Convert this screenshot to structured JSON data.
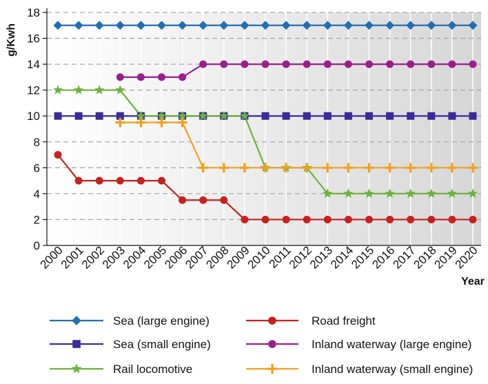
{
  "chart_data": {
    "type": "line",
    "ylabel": "g/Kwh",
    "xlabel": "Year",
    "ylim": [
      0,
      18
    ],
    "yticks": [
      0,
      2,
      4,
      6,
      8,
      10,
      12,
      14,
      16,
      18
    ],
    "categories": [
      "2000",
      "2001",
      "2002",
      "2003",
      "2004",
      "2005",
      "2006",
      "2007",
      "2008",
      "2009",
      "2010",
      "2011",
      "2012",
      "2013",
      "2014",
      "2015",
      "2016",
      "2017",
      "2018",
      "2019",
      "2020"
    ],
    "grid": true,
    "legend_position": "bottom",
    "series": [
      {
        "name": "Sea (large engine)",
        "color": "#1f6fb2",
        "marker": "diamond",
        "values": [
          17,
          17,
          17,
          17,
          17,
          17,
          17,
          17,
          17,
          17,
          17,
          17,
          17,
          17,
          17,
          17,
          17,
          17,
          17,
          17,
          17
        ]
      },
      {
        "name": "Sea (small engine)",
        "color": "#3a2a9a",
        "marker": "square",
        "values": [
          10,
          10,
          10,
          10,
          10,
          10,
          10,
          10,
          10,
          10,
          10,
          10,
          10,
          10,
          10,
          10,
          10,
          10,
          10,
          10,
          10
        ]
      },
      {
        "name": "Rail locomotive",
        "color": "#6ab33a",
        "marker": "star",
        "values": [
          12,
          12,
          12,
          12,
          10,
          10,
          10,
          10,
          10,
          10,
          6,
          6,
          6,
          4,
          4,
          4,
          4,
          4,
          4,
          4,
          4
        ]
      },
      {
        "name": "Road freight",
        "color": "#c8201e",
        "marker": "circle",
        "values": [
          7,
          5,
          5,
          5,
          5,
          5,
          3.5,
          3.5,
          3.5,
          2,
          2,
          2,
          2,
          2,
          2,
          2,
          2,
          2,
          2,
          2,
          2
        ]
      },
      {
        "name": "Inland waterway (large engine)",
        "color": "#9a1e8c",
        "marker": "circle",
        "values": [
          null,
          null,
          null,
          13,
          13,
          13,
          13,
          14,
          14,
          14,
          14,
          14,
          14,
          14,
          14,
          14,
          14,
          14,
          14,
          14,
          14
        ]
      },
      {
        "name": "Inland waterway (small engine)",
        "color": "#f2a01c",
        "marker": "plus",
        "values": [
          null,
          null,
          null,
          9.5,
          9.5,
          9.5,
          9.5,
          6,
          6,
          6,
          6,
          6,
          6,
          6,
          6,
          6,
          6,
          6,
          6,
          6,
          6
        ]
      }
    ]
  }
}
